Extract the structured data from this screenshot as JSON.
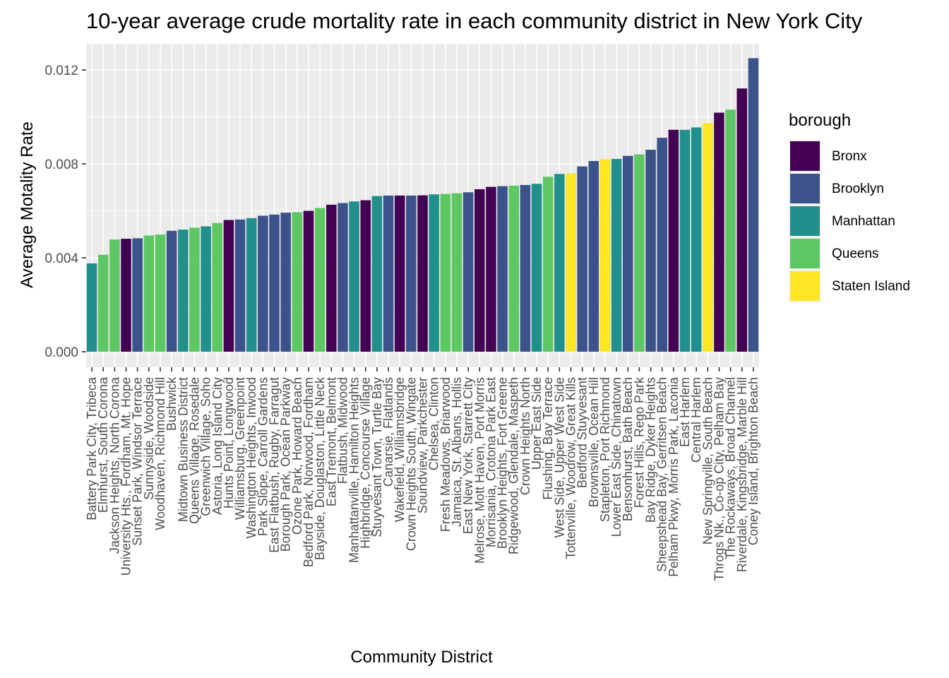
{
  "chart_data": {
    "type": "bar",
    "title": "10-year average crude mortality rate in each community district in New York City",
    "xlabel": "Community District",
    "ylabel": "Average Motality Rate",
    "ylim": [
      0,
      0.0125
    ],
    "y_ticks": [
      "0.000",
      "0.004",
      "0.008",
      "0.012"
    ],
    "y_tick_values": [
      0,
      0.004,
      0.008,
      0.012
    ],
    "grid": true,
    "legend": {
      "title": "borough",
      "placement": "right",
      "entries": [
        {
          "name": "Bronx",
          "color": "#440154"
        },
        {
          "name": "Brooklyn",
          "color": "#3B528B"
        },
        {
          "name": "Manhattan",
          "color": "#21908C"
        },
        {
          "name": "Queens",
          "color": "#5DC863"
        },
        {
          "name": "Staten Island",
          "color": "#FDE725"
        }
      ]
    },
    "categories": [
      "Battery Park City, Tribeca",
      "Elmhurst, South Corona",
      "Jackson Heights, North Corona",
      "University Hts., Fordham, Mt. Hope",
      "Sunset Park, Windsor Terrace",
      "Sunnyside, Woodside",
      "Woodhaven, Richmond Hill",
      "Bushwick",
      "Midtown Business District",
      "Queens Village, Rosedale",
      "Greenwich Village, Soho",
      "Astoria, Long Island City",
      "Hunts Point, Longwood",
      "Williamsburg, Greenpoint",
      "Washington Heights, Inwood",
      "Park Slope, Carroll Gardens",
      "East Flatbush, Rugby, Farragut",
      "Borough Park, Ocean Parkway",
      "Ozone Park, Howard Beach",
      "Bedford Park, Norwood, Fordham",
      "Bayside, Douglaston, Little Neck",
      "East Tremont, Belmont",
      "Flatbush, Midwood",
      "Manhattanville, Hamilton Heights",
      "Highbridge, Concourse Village",
      "Stuyvesant Town, Turtle Bay",
      "Canarsie, Flatlands",
      "Wakefield, Williamsbridge",
      "Crown Heights South, Wingate",
      "Soundview, Parkchester",
      "Chelsea, Clinton",
      "Fresh Meadows, Briarwood",
      "Jamaica, St. Albans, Hollis",
      "East New York, Starrett City",
      "Melrose, Mott Haven, Port Morris",
      "Morrisania, Crotona Park East",
      "Brooklyn Heights, Fort Greene",
      "Ridgewood, Glendale, Maspeth",
      "Crown Heights North",
      "Upper East Side",
      "Flushing, Bay Terrace",
      "West Side, Upper West Side",
      "Tottenville, Woodrow, Great Kills",
      "Bedford Stuyvesant",
      "Brownsville, Ocean Hill",
      "Stapleton, Port Richmond",
      "Lower East Side, Chinatown",
      "Bensonhurst, Bath Beach",
      "Forest Hills, Rego Park",
      "Bay Ridge, Dyker Heights",
      "Sheepshead Bay, Gerritsen Beach",
      "Pelham Pkwy, Morris Park, Laconia",
      "East Harlem",
      "Central Harlem",
      "New Springville, South Beach",
      "Throgs Nk., Co-op City, Pelham Bay",
      "The Rockaways, Broad Channel",
      "Riverdale, Kingsbridge, Marble Hill",
      "Coney Island, Brighton Beach"
    ],
    "values": [
      0.00376,
      0.00413,
      0.00478,
      0.00481,
      0.00483,
      0.00495,
      0.00499,
      0.00515,
      0.0052,
      0.00528,
      0.00534,
      0.00548,
      0.00561,
      0.00563,
      0.00569,
      0.00579,
      0.00584,
      0.00592,
      0.00594,
      0.006,
      0.00612,
      0.00626,
      0.00633,
      0.0064,
      0.00645,
      0.00663,
      0.00665,
      0.00665,
      0.00665,
      0.00666,
      0.0067,
      0.00672,
      0.00675,
      0.00679,
      0.00692,
      0.00702,
      0.00705,
      0.00707,
      0.0071,
      0.00715,
      0.00745,
      0.00757,
      0.00759,
      0.00789,
      0.00812,
      0.0082,
      0.00821,
      0.00834,
      0.0084,
      0.0086,
      0.00911,
      0.00945,
      0.00945,
      0.00955,
      0.00974,
      0.01018,
      0.01031,
      0.01121,
      0.0125
    ],
    "boroughs": [
      "Manhattan",
      "Queens",
      "Queens",
      "Bronx",
      "Brooklyn",
      "Queens",
      "Queens",
      "Brooklyn",
      "Manhattan",
      "Queens",
      "Manhattan",
      "Queens",
      "Bronx",
      "Brooklyn",
      "Manhattan",
      "Brooklyn",
      "Brooklyn",
      "Brooklyn",
      "Queens",
      "Bronx",
      "Queens",
      "Bronx",
      "Brooklyn",
      "Manhattan",
      "Bronx",
      "Manhattan",
      "Brooklyn",
      "Bronx",
      "Brooklyn",
      "Bronx",
      "Manhattan",
      "Queens",
      "Queens",
      "Brooklyn",
      "Bronx",
      "Bronx",
      "Brooklyn",
      "Queens",
      "Brooklyn",
      "Manhattan",
      "Queens",
      "Manhattan",
      "Staten Island",
      "Brooklyn",
      "Brooklyn",
      "Staten Island",
      "Manhattan",
      "Brooklyn",
      "Queens",
      "Brooklyn",
      "Brooklyn",
      "Bronx",
      "Manhattan",
      "Manhattan",
      "Staten Island",
      "Bronx",
      "Queens",
      "Bronx",
      "Brooklyn"
    ]
  }
}
